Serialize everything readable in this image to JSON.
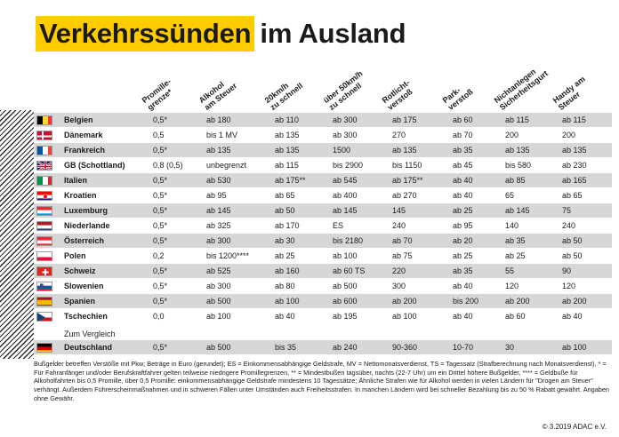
{
  "title": {
    "highlight": "Verkehrssünden",
    "rest": "im Ausland"
  },
  "headers": [
    {
      "id": "promille",
      "lines": [
        "Promille-",
        "grenze*"
      ]
    },
    {
      "id": "alkohol",
      "lines": [
        "Alkohol",
        "am Steuer"
      ]
    },
    {
      "id": "20kmh",
      "lines": [
        "20km/h",
        "zu schnell"
      ]
    },
    {
      "id": "50kmh",
      "lines": [
        "über 50km/h",
        "zu schnell"
      ]
    },
    {
      "id": "rotlicht",
      "lines": [
        "Rotlicht-",
        "verstoß"
      ]
    },
    {
      "id": "park",
      "lines": [
        "Park-",
        "verstoß"
      ]
    },
    {
      "id": "gurt",
      "lines": [
        "Nichtanlegen",
        "Sicherheitsgurt"
      ]
    },
    {
      "id": "handy",
      "lines": [
        "Handy am",
        "Steuer"
      ]
    }
  ],
  "rows": [
    {
      "country": "Belgien",
      "flag": "be",
      "values": [
        "0,5*",
        "ab 180",
        "ab 110",
        "ab 300",
        "ab 175",
        "ab 60",
        "ab 115",
        "ab 115"
      ]
    },
    {
      "country": "Dänemark",
      "flag": "dk",
      "values": [
        "0,5",
        "bis 1 MV",
        "ab 135",
        "ab 300",
        "270",
        "ab 70",
        "200",
        "200"
      ]
    },
    {
      "country": "Frankreich",
      "flag": "fr",
      "values": [
        "0,5*",
        "ab 135",
        "ab 135",
        "1500",
        "ab 135",
        "ab 35",
        "ab 135",
        "ab 135"
      ]
    },
    {
      "country": "GB (Schottland)",
      "flag": "gb",
      "values": [
        "0,8 (0,5)",
        "unbegrenzt",
        "ab 115",
        "bis 2900",
        "bis 1150",
        "ab 45",
        "bis 580",
        "ab 230"
      ]
    },
    {
      "country": "Italien",
      "flag": "it",
      "values": [
        "0,5*",
        "ab 530",
        "ab 175**",
        "ab 545",
        "ab 175**",
        "ab 40",
        "ab 85",
        "ab 165"
      ]
    },
    {
      "country": "Kroatien",
      "flag": "hr",
      "values": [
        "0,5*",
        "ab 95",
        "ab 65",
        "ab 400",
        "ab 270",
        "ab 40",
        "65",
        "ab 65"
      ]
    },
    {
      "country": "Luxemburg",
      "flag": "lu",
      "values": [
        "0,5*",
        "ab 145",
        "ab 50",
        "ab 145",
        "145",
        "ab 25",
        "ab 145",
        "75"
      ]
    },
    {
      "country": "Niederlande",
      "flag": "nl",
      "values": [
        "0,5*",
        "ab 325",
        "ab 170",
        "ES",
        "240",
        "ab 95",
        "140",
        "240"
      ]
    },
    {
      "country": "Österreich",
      "flag": "at",
      "values": [
        "0,5*",
        "ab 300",
        "ab 30",
        "bis 2180",
        "ab 70",
        "ab 20",
        "ab 35",
        "ab 50"
      ]
    },
    {
      "country": "Polen",
      "flag": "pl",
      "values": [
        "0,2",
        "bis 1200****",
        "ab 25",
        "ab 100",
        "ab 75",
        "ab 25",
        "ab 25",
        "ab 50"
      ]
    },
    {
      "country": "Schweiz",
      "flag": "ch",
      "values": [
        "0,5*",
        "ab 525",
        "ab 160",
        "ab 60 TS",
        "220",
        "ab 35",
        "55",
        "90"
      ]
    },
    {
      "country": "Slowenien",
      "flag": "si",
      "values": [
        "0,5*",
        "ab 300",
        "ab 80",
        "ab 500",
        "300",
        "ab 40",
        "120",
        "120"
      ]
    },
    {
      "country": "Spanien",
      "flag": "es",
      "values": [
        "0,5*",
        "ab 500",
        "ab 100",
        "ab 600",
        "ab 200",
        "bis 200",
        "ab 200",
        "ab 200"
      ]
    },
    {
      "country": "Tschechien",
      "flag": "cz",
      "values": [
        "0,0",
        "ab 100",
        "ab 40",
        "ab 195",
        "ab 100",
        "ab 40",
        "ab 60",
        "ab 40"
      ]
    }
  ],
  "comparison": {
    "label": "Zum Vergleich",
    "row": {
      "country": "Deutschland",
      "flag": "de",
      "values": [
        "0,5*",
        "ab 500",
        "bis 35",
        "ab 240",
        "90-360",
        "10-70",
        "30",
        "ab 100"
      ]
    }
  },
  "footnote": "Bußgelder betreffen Verstöße mit Pkw; Beträge in Euro (gerundet); ES = Einkommensabhängige Geldstrafe, MV = Nettomonatsverdienst, TS = Tagessatz (Strafberechnung nach Monatsverdienst), * = Für Fahranfänger und/oder Berufskraftfahrer gelten teilweise niedrigere Promillegrenzen, ** = Mindestbußen tagsüber, nachts (22-7 Uhr) um ein Drittel höhere Bußgelder, **** = Geldbuße für Alkoholfahrten bis 0,5 Promille, über 0,5 Promille: einkommensabhängige Geldstrafe mindestens 10 Tagessätze; Ähnliche Strafen wie für Alkohol werden in vielen Ländern für \"Drogen am Steuer\" verhängt. Außerdem Führerscheinmaßnahmen und in schweren Fällen unter Umständen auch Freiheitsstrafen. In manchen Ländern wird bei schneller Bezahlung bis zu 50 % Rabatt gewährt. Angaben ohne Gewähr.",
  "copyright": "© 3.2019 ADAC e.V."
}
